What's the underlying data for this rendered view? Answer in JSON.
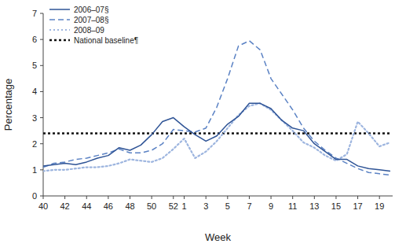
{
  "chart_data": {
    "type": "line",
    "x_label": "Week",
    "y_label": "Percentage",
    "categories": [
      40,
      null,
      42,
      null,
      44,
      null,
      46,
      null,
      48,
      null,
      50,
      null,
      52,
      1,
      null,
      3,
      null,
      5,
      null,
      7,
      null,
      9,
      null,
      11,
      null,
      13,
      null,
      15,
      null,
      17,
      null,
      19,
      null
    ],
    "ylim": [
      0,
      7
    ],
    "yticks": [
      0,
      1,
      2,
      3,
      4,
      5,
      6,
      7
    ],
    "grid": false,
    "legend": "upper left",
    "series": [
      {
        "name": "2006–07§",
        "color": "#2f5496",
        "line_style": "solid",
        "values": [
          1.15,
          1.2,
          1.25,
          1.2,
          1.3,
          1.45,
          1.55,
          1.85,
          1.75,
          1.95,
          2.35,
          2.85,
          3.0,
          2.65,
          2.35,
          2.1,
          2.3,
          2.75,
          3.05,
          3.55,
          3.55,
          3.35,
          2.9,
          2.6,
          2.5,
          2.0,
          1.7,
          1.4,
          1.4,
          1.15,
          1.05,
          1.0,
          0.95
        ]
      },
      {
        "name": "2007–08§",
        "color": "#5b82c4",
        "line_style": "dashed",
        "values": [
          1.1,
          1.25,
          1.3,
          1.4,
          1.45,
          1.55,
          1.65,
          1.8,
          1.65,
          1.65,
          1.75,
          2.0,
          2.55,
          2.5,
          2.45,
          2.6,
          3.4,
          4.5,
          5.75,
          5.95,
          5.6,
          4.5,
          3.9,
          3.3,
          2.6,
          2.1,
          1.75,
          1.45,
          1.25,
          1.05,
          0.9,
          0.85,
          0.8
        ]
      },
      {
        "name": "2008–09",
        "color": "#9db5df",
        "line_style": "dotted",
        "values": [
          0.95,
          1.0,
          1.0,
          1.05,
          1.1,
          1.1,
          1.15,
          1.25,
          1.4,
          1.35,
          1.3,
          1.45,
          1.8,
          2.2,
          1.45,
          1.7,
          2.1,
          2.6,
          3.1,
          3.45,
          3.55,
          3.3,
          2.9,
          2.5,
          2.05,
          1.85,
          1.55,
          1.35,
          1.6,
          2.85,
          2.4,
          1.9,
          2.05
        ]
      },
      {
        "name": "National baseline¶",
        "color": "#111111",
        "line_style": "dotted",
        "values": [
          2.4,
          2.4,
          2.4,
          2.4,
          2.4,
          2.4,
          2.4,
          2.4,
          2.4,
          2.4,
          2.4,
          2.4,
          2.4,
          2.4,
          2.4,
          2.4,
          2.4,
          2.4,
          2.4,
          2.4,
          2.4,
          2.4,
          2.4,
          2.4,
          2.4,
          2.4,
          2.4,
          2.4,
          2.4,
          2.4,
          2.4,
          2.4,
          2.4
        ]
      }
    ]
  }
}
